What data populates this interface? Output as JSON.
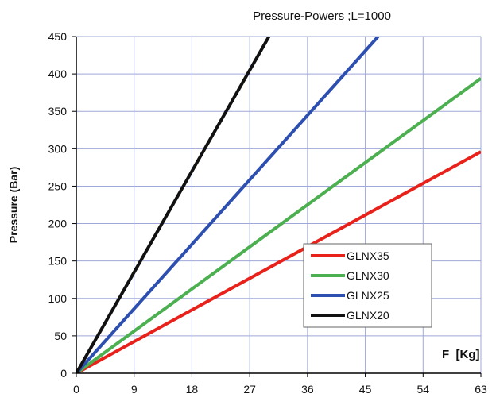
{
  "chart_data": {
    "type": "line",
    "title": "Pressure-Powers ;L=1000",
    "xlabel": "F  [Kg]",
    "ylabel": "Pressure (Bar)",
    "xlim": [
      0,
      63
    ],
    "ylim": [
      0,
      450
    ],
    "xticks": [
      0,
      9,
      18,
      27,
      36,
      45,
      54,
      63
    ],
    "yticks": [
      0,
      50,
      100,
      150,
      200,
      250,
      300,
      350,
      400,
      450
    ],
    "grid": true,
    "legend_position": "lower-right",
    "series": [
      {
        "name": "GLNX35",
        "color": "#e8221b",
        "x": [
          0,
          63
        ],
        "y": [
          0,
          296
        ]
      },
      {
        "name": "GLNX30",
        "color": "#4caf50",
        "x": [
          0,
          63
        ],
        "y": [
          0,
          394
        ]
      },
      {
        "name": "GLNX25",
        "color": "#2d4fb0",
        "x": [
          0,
          47
        ],
        "y": [
          0,
          450
        ]
      },
      {
        "name": "GLNX20",
        "color": "#111111",
        "x": [
          0,
          30
        ],
        "y": [
          0,
          450
        ]
      }
    ],
    "colors": {
      "grid": "#9fa8d8",
      "axis": "#000000",
      "legend_border": "#666666"
    }
  }
}
